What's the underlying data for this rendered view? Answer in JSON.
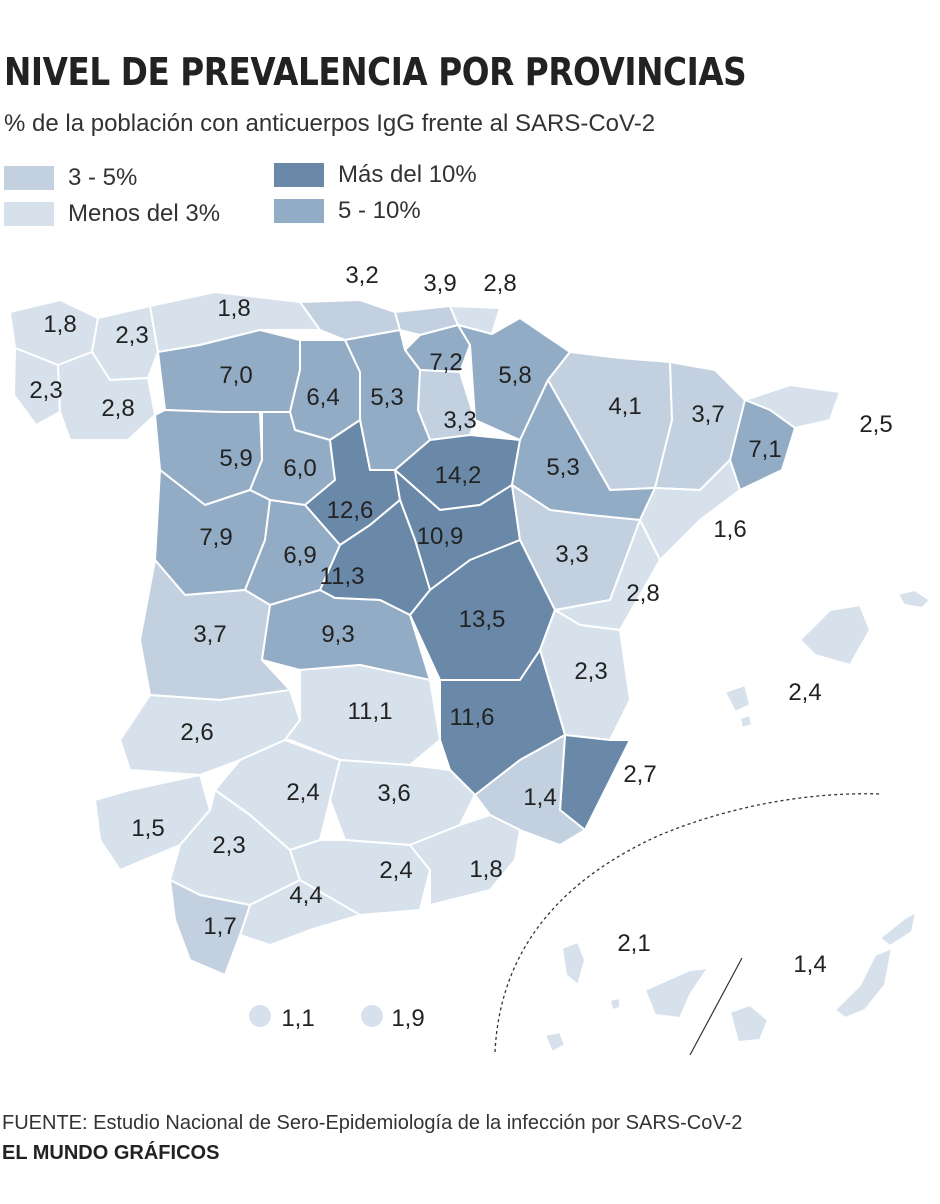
{
  "title": "NIVEL DE PREVALENCIA POR PROVINCIAS",
  "subtitle": "% de la población con anticuerpos IgG frente al SARS-CoV-2",
  "legend": [
    {
      "label": "3 - 5%",
      "color": "#c2d0e0"
    },
    {
      "label": "Menos del 3%",
      "color": "#d6e1ec"
    },
    {
      "label": "Más del 10%",
      "color": "#6a89a8"
    },
    {
      "label": "5 - 10%",
      "color": "#93acc5"
    }
  ],
  "colors": {
    "lt3": "#d6e1ec",
    "r3to5": "#c2d0e0",
    "r5to10": "#93acc5",
    "gt10": "#6a89a8",
    "border": "#ffffff"
  },
  "provinces": [
    {
      "name": "A Coruña",
      "value": "1,8",
      "cls": "lt3"
    },
    {
      "name": "Lugo",
      "value": "2,3",
      "cls": "lt3"
    },
    {
      "name": "Pontevedra",
      "value": "2,3",
      "cls": "lt3"
    },
    {
      "name": "Ourense",
      "value": "2,8",
      "cls": "lt3"
    },
    {
      "name": "Asturias",
      "value": "1,8",
      "cls": "lt3"
    },
    {
      "name": "Cantabria",
      "value": "3,2",
      "cls": "r3to5"
    },
    {
      "name": "Bizkaia",
      "value": "3,9",
      "cls": "r3to5"
    },
    {
      "name": "Gipuzkoa",
      "value": "2,8",
      "cls": "lt3"
    },
    {
      "name": "Álava",
      "value": "7,2",
      "cls": "r5to10"
    },
    {
      "name": "Navarra",
      "value": "5,8",
      "cls": "r5to10"
    },
    {
      "name": "La Rioja",
      "value": "3,3",
      "cls": "r3to5"
    },
    {
      "name": "León",
      "value": "7,0",
      "cls": "r5to10"
    },
    {
      "name": "Palencia",
      "value": "6,4",
      "cls": "r5to10"
    },
    {
      "name": "Burgos",
      "value": "5,3",
      "cls": "r5to10"
    },
    {
      "name": "Zamora",
      "value": "5,9",
      "cls": "r5to10"
    },
    {
      "name": "Valladolid",
      "value": "6,0",
      "cls": "r5to10"
    },
    {
      "name": "Soria",
      "value": "14,2",
      "cls": "gt10"
    },
    {
      "name": "Huesca",
      "value": "4,1",
      "cls": "r3to5"
    },
    {
      "name": "Lleida",
      "value": "3,7",
      "cls": "r3to5"
    },
    {
      "name": "Girona",
      "value": "2,5",
      "cls": "lt3"
    },
    {
      "name": "Barcelona",
      "value": "7,1",
      "cls": "r5to10"
    },
    {
      "name": "Zaragoza",
      "value": "5,3",
      "cls": "r5to10"
    },
    {
      "name": "Tarragona",
      "value": "1,6",
      "cls": "lt3"
    },
    {
      "name": "Segovia",
      "value": "12,6",
      "cls": "gt10"
    },
    {
      "name": "Salamanca",
      "value": "7,9",
      "cls": "r5to10"
    },
    {
      "name": "Ávila",
      "value": "6,9",
      "cls": "r5to10"
    },
    {
      "name": "Guadalajara",
      "value": "10,9",
      "cls": "gt10"
    },
    {
      "name": "Madrid",
      "value": "11,3",
      "cls": "gt10"
    },
    {
      "name": "Teruel",
      "value": "3,3",
      "cls": "r3to5"
    },
    {
      "name": "Castellón",
      "value": "2,8",
      "cls": "lt3"
    },
    {
      "name": "Cáceres",
      "value": "3,7",
      "cls": "r3to5"
    },
    {
      "name": "Toledo",
      "value": "9,3",
      "cls": "r5to10"
    },
    {
      "name": "Cuenca",
      "value": "13,5",
      "cls": "gt10"
    },
    {
      "name": "Valencia",
      "value": "2,3",
      "cls": "lt3"
    },
    {
      "name": "Illes Balears",
      "value": "2,4",
      "cls": "lt3"
    },
    {
      "name": "Badajoz",
      "value": "2,6",
      "cls": "lt3"
    },
    {
      "name": "Ciudad Real",
      "value": "11,1",
      "cls": "gt10"
    },
    {
      "name": "Albacete",
      "value": "11,6",
      "cls": "gt10"
    },
    {
      "name": "Alicante",
      "value": "2,7",
      "cls": "lt3"
    },
    {
      "name": "Córdoba",
      "value": "2,4",
      "cls": "lt3"
    },
    {
      "name": "Jaén",
      "value": "3,6",
      "cls": "r3to5"
    },
    {
      "name": "Murcia",
      "value": "1,4",
      "cls": "lt3"
    },
    {
      "name": "Huelva",
      "value": "1,5",
      "cls": "lt3"
    },
    {
      "name": "Sevilla",
      "value": "2,3",
      "cls": "lt3"
    },
    {
      "name": "Granada",
      "value": "2,4",
      "cls": "lt3"
    },
    {
      "name": "Almería",
      "value": "1,8",
      "cls": "lt3"
    },
    {
      "name": "Málaga",
      "value": "4,4",
      "cls": "r3to5"
    },
    {
      "name": "Cádiz",
      "value": "1,7",
      "cls": "lt3"
    },
    {
      "name": "Santa Cruz de Tenerife",
      "value": "2,1",
      "cls": "lt3"
    },
    {
      "name": "Las Palmas",
      "value": "1,4",
      "cls": "lt3"
    },
    {
      "name": "Ceuta",
      "value": "1,1",
      "cls": "lt3"
    },
    {
      "name": "Melilla",
      "value": "1,9",
      "cls": "lt3"
    }
  ],
  "source": "FUENTE: Estudio Nacional de Sero-Epidemiología de la infección por SARS-CoV-2",
  "credit": "EL MUNDO GRÁFICOS"
}
